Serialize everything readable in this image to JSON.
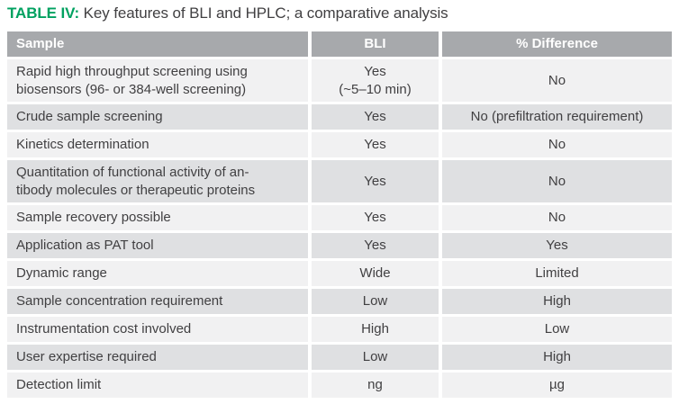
{
  "title": {
    "label": "TABLE IV:",
    "text": "Key features of BLI and HPLC; a comparative analysis"
  },
  "colors": {
    "accent_green": "#00A160",
    "header_bg": "#A7A9AC",
    "header_text": "#FFFFFF",
    "row_light": "#F1F1F2",
    "row_dark": "#DFE0E2",
    "body_text": "#414042"
  },
  "chart_data": {
    "type": "table",
    "title": "TABLE IV: Key features of BLI and HPLC; a comparative analysis",
    "columns": [
      "Sample",
      "BLI",
      "% Difference"
    ],
    "rows": [
      [
        "Rapid high throughput screening using biosensors (96- or 384-well screening)",
        "Yes (~5–10 min)",
        "No"
      ],
      [
        "Crude sample screening",
        "Yes",
        "No (prefiltration requirement)"
      ],
      [
        "Kinetics determination",
        "Yes",
        "No"
      ],
      [
        "Quantitation of functional activity of antibody molecules or therapeutic proteins",
        "Yes",
        "No"
      ],
      [
        "Sample recovery possible",
        "Yes",
        "No"
      ],
      [
        "Application as PAT tool",
        "Yes",
        "Yes"
      ],
      [
        "Dynamic range",
        "Wide",
        "Limited"
      ],
      [
        "Sample concentration requirement",
        "Low",
        "High"
      ],
      [
        "Instrumentation cost involved",
        "High",
        "Low"
      ],
      [
        "User expertise required",
        "Low",
        "High"
      ],
      [
        "Detection limit",
        "ng",
        "µg"
      ]
    ]
  },
  "table": {
    "columns": [
      "Sample",
      "BLI",
      "% Difference"
    ],
    "rows": [
      {
        "sample": "Rapid high throughput screening using\nbiosensors (96- or 384-well screening)",
        "bli": "Yes\n(~5–10 min)",
        "difference": "No"
      },
      {
        "sample": "Crude sample screening",
        "bli": "Yes",
        "difference": "No (prefiltration requirement)"
      },
      {
        "sample": "Kinetics determination",
        "bli": "Yes",
        "difference": "No"
      },
      {
        "sample": "Quantitation of functional activity of an-\ntibody molecules or therapeutic proteins",
        "bli": "Yes",
        "difference": "No"
      },
      {
        "sample": "Sample recovery possible",
        "bli": "Yes",
        "difference": "No"
      },
      {
        "sample": "Application as PAT tool",
        "bli": "Yes",
        "difference": "Yes"
      },
      {
        "sample": "Dynamic range",
        "bli": "Wide",
        "difference": "Limited"
      },
      {
        "sample": "Sample concentration requirement",
        "bli": "Low",
        "difference": "High"
      },
      {
        "sample": "Instrumentation cost involved",
        "bli": "High",
        "difference": "Low"
      },
      {
        "sample": "User expertise required",
        "bli": "Low",
        "difference": "High"
      },
      {
        "sample": "Detection limit",
        "bli": "ng",
        "difference": "µg"
      }
    ]
  }
}
